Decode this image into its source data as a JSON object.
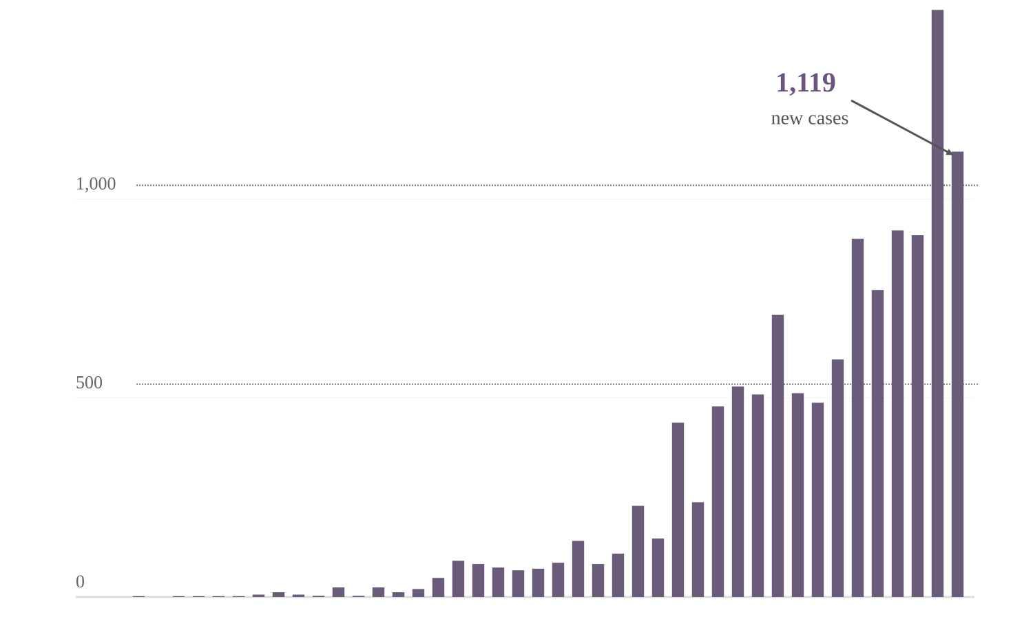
{
  "chart_data": {
    "type": "bar",
    "values": [
      2,
      0,
      2,
      2,
      2,
      2,
      6,
      12,
      6,
      3,
      24,
      3,
      24,
      12,
      20,
      48,
      91,
      83,
      74,
      67,
      71,
      86,
      141,
      83,
      109,
      229,
      147,
      438,
      238,
      479,
      529,
      509,
      709,
      512,
      488,
      597,
      900,
      771,
      921,
      909,
      1475,
      1119
    ],
    "color": "#6b5b7b",
    "ylim": [
      0,
      1500
    ],
    "yticks": [
      0,
      500,
      {
        "value": 1000,
        "label": "1,000"
      }
    ],
    "grid": true,
    "annotation": {
      "value": "1,119",
      "text": "new cases"
    }
  }
}
